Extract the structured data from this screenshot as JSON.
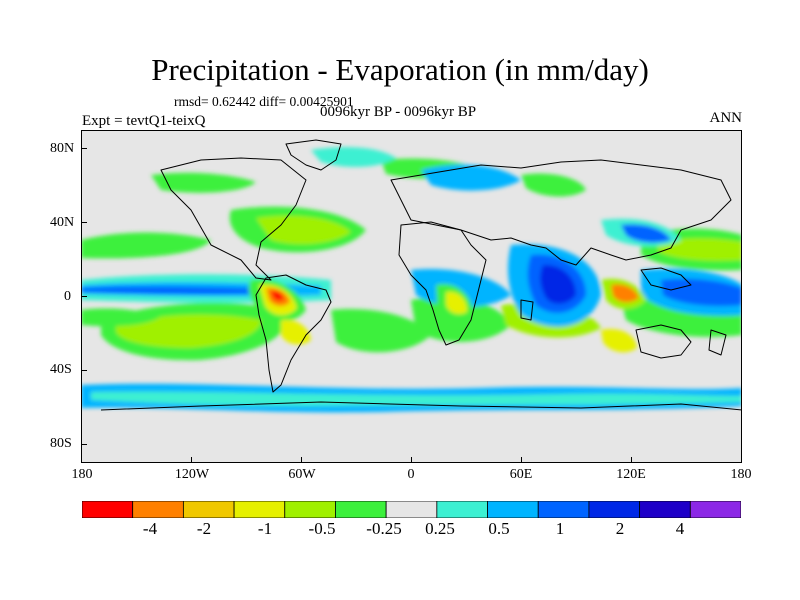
{
  "title": "Precipitation - Evaporation (in mm/day)",
  "stats": "rmsd= 0.62442 diff= 0.00425901",
  "experiment": "Expt = tevtQ1-teixQ",
  "period": "0096kyr BP - 0096kyr BP",
  "season": "ANN",
  "lat_labels": [
    "80N",
    "40N",
    "0",
    "40S",
    "80S"
  ],
  "lon_labels": [
    "180",
    "120W",
    "60W",
    "0",
    "60E",
    "120E",
    "180"
  ],
  "colorbar": {
    "colors": [
      "#ff0000",
      "#ff8000",
      "#f0c800",
      "#e6f000",
      "#a0f000",
      "#3cf03c",
      "#e6e6e6",
      "#3cf0d2",
      "#00b4ff",
      "#0064ff",
      "#0028e6",
      "#1e00c8",
      "#8c28e6"
    ],
    "labels": [
      "-4",
      "-2",
      "-1",
      "-0.5",
      "-0.25",
      "0.25",
      "0.5",
      "1",
      "2",
      "4"
    ]
  }
}
